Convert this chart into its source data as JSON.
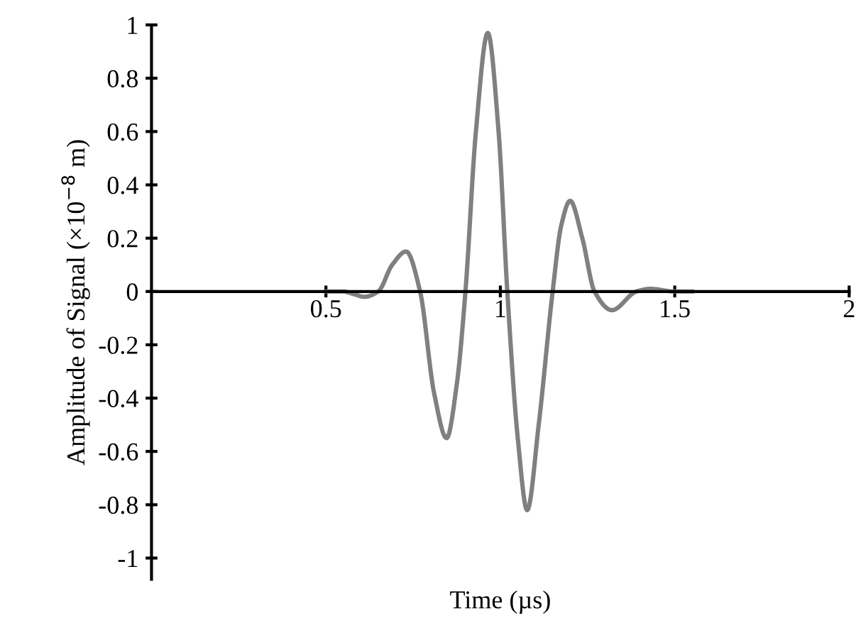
{
  "chart_data": {
    "type": "line",
    "xlabel": "Time (µs)",
    "ylabel": "Amplitude of Signal (×10$^{−8}$ m)",
    "xlim": [
      0,
      2
    ],
    "ylim": [
      -1.08,
      1
    ],
    "xticks": [
      0.5,
      1,
      1.5,
      2
    ],
    "yticks": [
      -1,
      -0.8,
      -0.6,
      -0.4,
      -0.2,
      0,
      0.2,
      0.4,
      0.6,
      0.8,
      1
    ],
    "grid": false,
    "marker": "none",
    "line_style": "solid",
    "series": [
      {
        "color": "#808080",
        "x": [
          0.5,
          0.55,
          0.58,
          0.61,
          0.65,
          0.69,
          0.73,
          0.77,
          0.81,
          0.846,
          0.875,
          0.9,
          0.93,
          0.964,
          0.995,
          1.02,
          1.05,
          1.077,
          1.11,
          1.15,
          1.175,
          1.2,
          1.235,
          1.27,
          1.32,
          1.39,
          1.43,
          1.5,
          1.55
        ],
        "values": [
          0,
          0,
          -0.01,
          -0.02,
          0,
          0.1,
          0.15,
          0,
          -0.38,
          -0.55,
          -0.35,
          0,
          0.6,
          0.97,
          0.6,
          0,
          -0.55,
          -0.82,
          -0.5,
          0,
          0.25,
          0.34,
          0.2,
          0,
          -0.07,
          0,
          0.01,
          0,
          0
        ]
      }
    ]
  }
}
